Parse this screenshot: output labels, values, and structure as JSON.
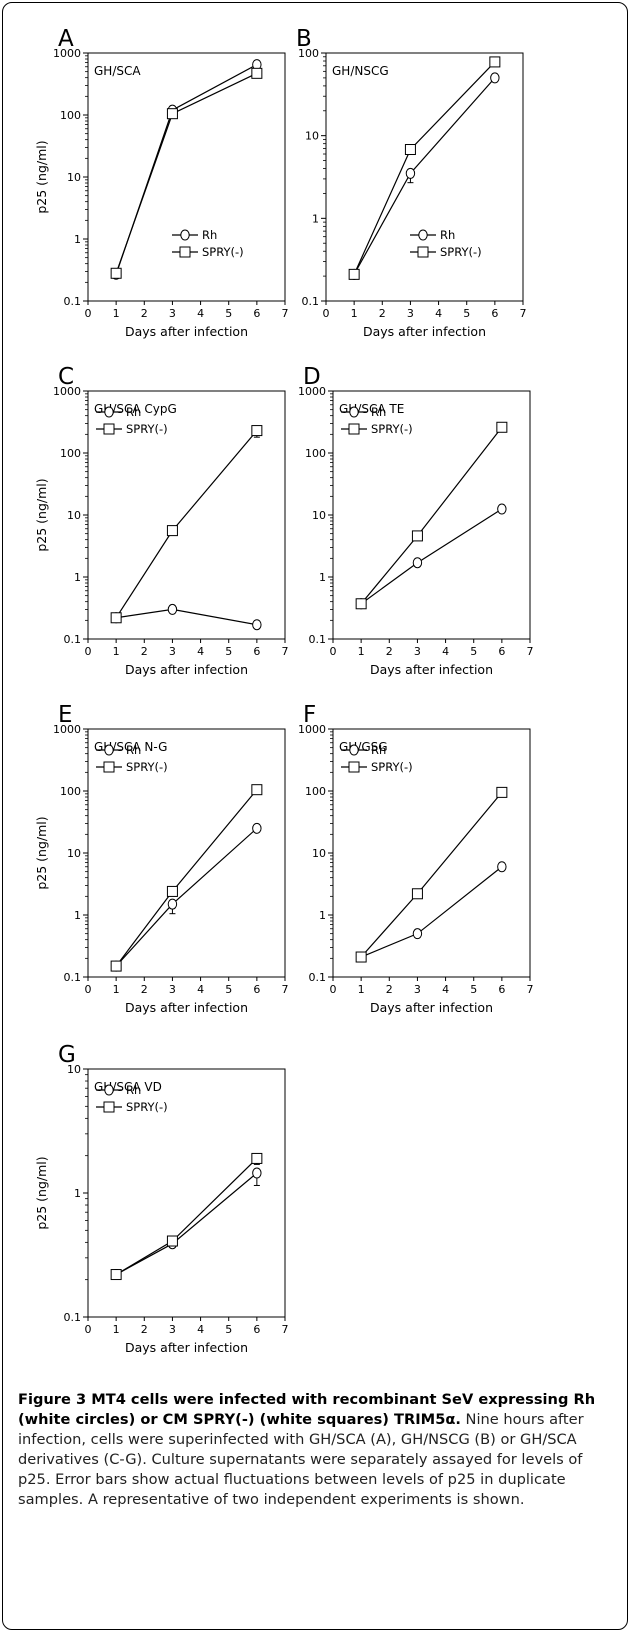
{
  "figure": {
    "caption_title": "Figure 3 MT4 cells were infected with recombinant SeV expressing Rh (white circles) or CM SPRY(-) (white squares) TRIM5α.",
    "caption_body": " Nine hours after infection, cells were superinfected with GH/SCA (A), GH/NSCG (B) or GH/SCA derivatives (C-G). Culture supernatants were separately assayed for levels of p25. Error bars show actual fluctuations between levels of p25 in duplicate samples. A representative of two independent experiments is shown."
  },
  "chart_data": [
    {
      "panel": "A",
      "subtitle": "GH/SCA",
      "type": "line",
      "xlabel": "Days after infection",
      "ylabel": "p25 (ng/ml)",
      "xlim": [
        0,
        7
      ],
      "xticks": [
        "0",
        "1",
        "2",
        "3",
        "4",
        "5",
        "6",
        "7"
      ],
      "yscale": "log",
      "ylim": [
        0.1,
        1000
      ],
      "yticks": [
        "0.1",
        "1",
        "10",
        "100",
        "1000"
      ],
      "legend_position": "lower-right",
      "series": [
        {
          "name": "Rh",
          "marker": "circle",
          "x": [
            1,
            3,
            6
          ],
          "y": [
            0.27,
            120,
            650
          ]
        },
        {
          "name": "SPRY(-)",
          "marker": "square",
          "x": [
            1,
            3,
            6
          ],
          "y": [
            0.28,
            105,
            470
          ]
        }
      ]
    },
    {
      "panel": "B",
      "subtitle": "GH/NSCG",
      "type": "line",
      "xlabel": "Days after infection",
      "ylabel": "",
      "xlim": [
        0,
        7
      ],
      "xticks": [
        "0",
        "1",
        "2",
        "3",
        "4",
        "5",
        "6",
        "7"
      ],
      "yscale": "log",
      "ylim": [
        0.1,
        100
      ],
      "yticks": [
        "0.1",
        "1",
        "10",
        "100"
      ],
      "legend_position": "lower-right",
      "series": [
        {
          "name": "Rh",
          "marker": "circle",
          "x": [
            1,
            3,
            6
          ],
          "y": [
            0.21,
            3.5,
            50
          ],
          "err": [
            0,
            0.8,
            0
          ]
        },
        {
          "name": "SPRY(-)",
          "marker": "square",
          "x": [
            1,
            3,
            6
          ],
          "y": [
            0.21,
            6.8,
            78
          ]
        }
      ]
    },
    {
      "panel": "C",
      "subtitle": "GH/SCA CypG",
      "type": "line",
      "xlabel": "Days after infection",
      "ylabel": "p25 (ng/ml)",
      "xlim": [
        0,
        7
      ],
      "xticks": [
        "0",
        "1",
        "2",
        "3",
        "4",
        "5",
        "6",
        "7"
      ],
      "yscale": "log",
      "ylim": [
        0.1,
        1000
      ],
      "yticks": [
        "0.1",
        "1",
        "10",
        "100",
        "1000"
      ],
      "legend_position": "top-left",
      "series": [
        {
          "name": "Rh",
          "marker": "circle",
          "x": [
            1,
            3,
            6
          ],
          "y": [
            0.22,
            0.3,
            0.17
          ]
        },
        {
          "name": "SPRY(-)",
          "marker": "square",
          "x": [
            1,
            3,
            6
          ],
          "y": [
            0.22,
            5.6,
            230
          ],
          "err": [
            0,
            0,
            50
          ]
        }
      ]
    },
    {
      "panel": "D",
      "subtitle": "GH/SCA TE",
      "type": "line",
      "xlabel": "Days after infection",
      "ylabel": "",
      "xlim": [
        0,
        7
      ],
      "xticks": [
        "0",
        "1",
        "2",
        "3",
        "4",
        "5",
        "6",
        "7"
      ],
      "yscale": "log",
      "ylim": [
        0.1,
        1000
      ],
      "yticks": [
        "0.1",
        "1",
        "10",
        "100",
        "1000"
      ],
      "legend_position": "top-left",
      "series": [
        {
          "name": "Rh",
          "marker": "circle",
          "x": [
            1,
            3,
            6
          ],
          "y": [
            0.37,
            1.7,
            12.5
          ]
        },
        {
          "name": "SPRY(-)",
          "marker": "square",
          "x": [
            1,
            3,
            6
          ],
          "y": [
            0.37,
            4.6,
            260
          ]
        }
      ]
    },
    {
      "panel": "E",
      "subtitle": "GH/SCA N-G",
      "type": "line",
      "xlabel": "Days after infection",
      "ylabel": "p25 (ng/ml)",
      "xlim": [
        0,
        7
      ],
      "xticks": [
        "0",
        "1",
        "2",
        "3",
        "4",
        "5",
        "6",
        "7"
      ],
      "yscale": "log",
      "ylim": [
        0.1,
        1000
      ],
      "yticks": [
        "0.1",
        "1",
        "10",
        "100",
        "1000"
      ],
      "legend_position": "top-left",
      "series": [
        {
          "name": "Rh",
          "marker": "circle",
          "x": [
            1,
            3,
            6
          ],
          "y": [
            0.15,
            1.5,
            25
          ],
          "err": [
            0,
            0.45,
            0
          ]
        },
        {
          "name": "SPRY(-)",
          "marker": "square",
          "x": [
            1,
            3,
            6
          ],
          "y": [
            0.15,
            2.4,
            105
          ]
        }
      ]
    },
    {
      "panel": "F",
      "subtitle": "GH/GSG",
      "type": "line",
      "xlabel": "Days after infection",
      "ylabel": "",
      "xlim": [
        0,
        7
      ],
      "xticks": [
        "0",
        "1",
        "2",
        "3",
        "4",
        "5",
        "6",
        "7"
      ],
      "yscale": "log",
      "ylim": [
        0.1,
        1000
      ],
      "yticks": [
        "0.1",
        "1",
        "10",
        "100",
        "1000"
      ],
      "legend_position": "top-left",
      "series": [
        {
          "name": "Rh",
          "marker": "circle",
          "x": [
            1,
            3,
            6
          ],
          "y": [
            0.21,
            0.5,
            6
          ]
        },
        {
          "name": "SPRY(-)",
          "marker": "square",
          "x": [
            1,
            3,
            6
          ],
          "y": [
            0.21,
            2.2,
            95
          ]
        }
      ]
    },
    {
      "panel": "G",
      "subtitle": "GH/SCA VD",
      "type": "line",
      "xlabel": "Days after infection",
      "ylabel": "p25 (ng/ml)",
      "xlim": [
        0,
        7
      ],
      "xticks": [
        "0",
        "1",
        "2",
        "3",
        "4",
        "5",
        "6",
        "7"
      ],
      "yscale": "log",
      "ylim": [
        0.1,
        10
      ],
      "yticks": [
        "0.1",
        "1",
        "10"
      ],
      "legend_position": "top-left",
      "series": [
        {
          "name": "Rh",
          "marker": "circle",
          "x": [
            1,
            3,
            6
          ],
          "y": [
            0.22,
            0.39,
            1.45
          ],
          "err": [
            0,
            0,
            0.3
          ]
        },
        {
          "name": "SPRY(-)",
          "marker": "square",
          "x": [
            1,
            3,
            6
          ],
          "y": [
            0.22,
            0.41,
            1.9
          ],
          "err": [
            0,
            0,
            0.2
          ]
        }
      ]
    }
  ]
}
